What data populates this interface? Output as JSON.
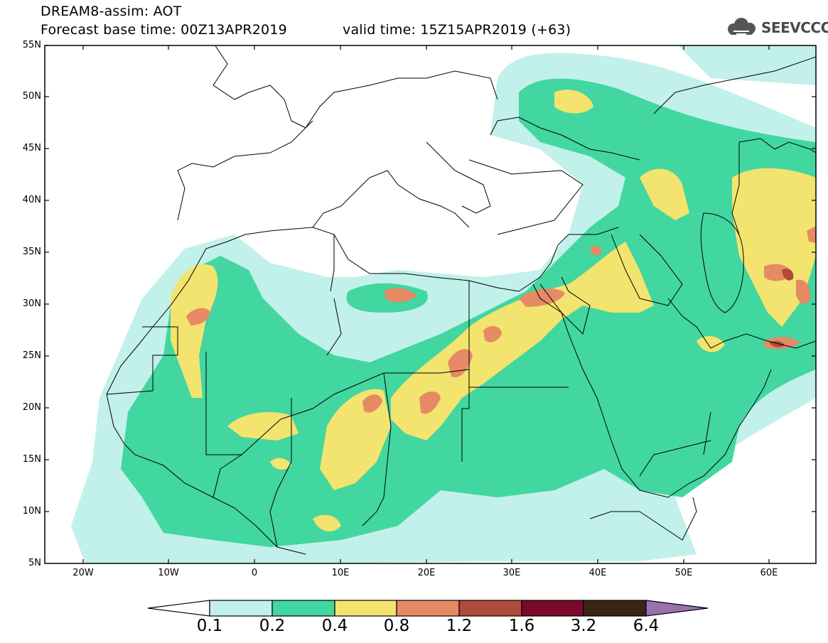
{
  "header": {
    "line1": "DREAM8-assim: AOT",
    "line2": "Forecast base time: 00Z13APR2019",
    "line3": "valid time: 15Z15APR2019 (+63)"
  },
  "logo": {
    "text": "SEEVCCC",
    "icon": "cloud-icon",
    "color": "#555555"
  },
  "axes": {
    "lat_labels": [
      "55N",
      "50N",
      "45N",
      "40N",
      "35N",
      "30N",
      "25N",
      "20N",
      "15N",
      "10N",
      "5N"
    ],
    "lon_labels": [
      "20W",
      "10W",
      "0",
      "10E",
      "20E",
      "30E",
      "40E",
      "50E",
      "60E"
    ]
  },
  "colorbar": {
    "labels": [
      "0.1",
      "0.2",
      "0.4",
      "0.8",
      "1.2",
      "1.6",
      "3.2",
      "6.4"
    ],
    "colors": [
      "#ffffff",
      "#c2f0ea",
      "#42d6a0",
      "#f2e46e",
      "#e58a64",
      "#b04a3a",
      "#7a0a2a",
      "#3a2416",
      "#9a70b0"
    ]
  },
  "palette": {
    "c1": "#c2f0ea",
    "c2": "#42d6a0",
    "c3": "#f2e46e",
    "c4": "#e58a64",
    "c5": "#b04a3a",
    "border": "#000000"
  }
}
